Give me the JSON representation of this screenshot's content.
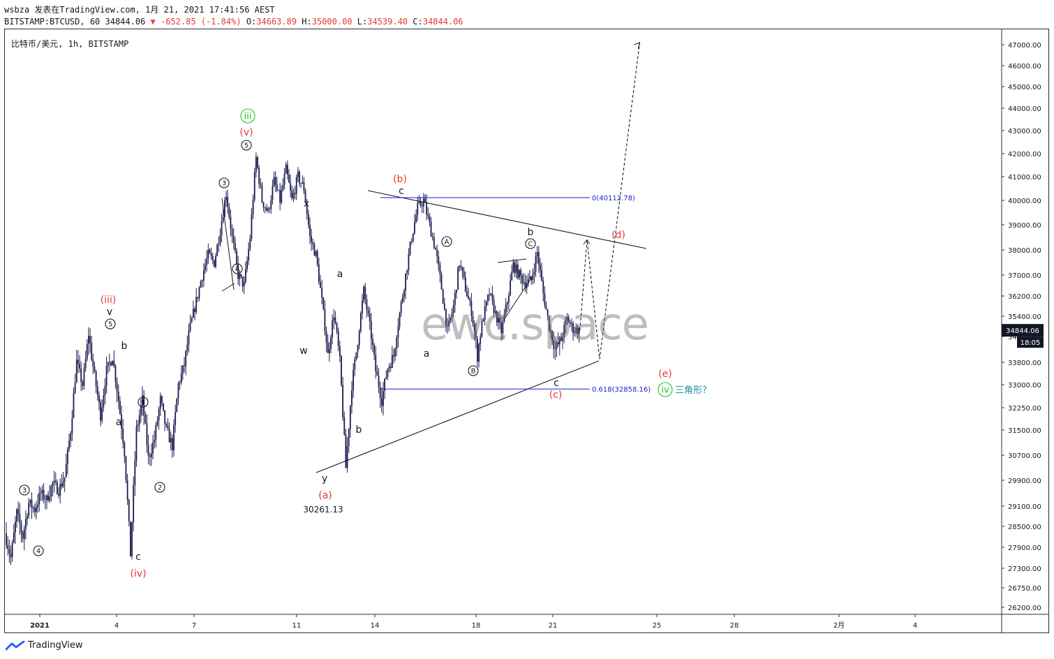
{
  "header": {
    "line1": "wsbza 发表在TradingView.com, 1月 21, 2021 17:41:56 AEST",
    "line2_symbol": "BITSTAMP:BTCUSD, 60 34844.06",
    "line2_change": "▼ -652.85 (-1.84%)",
    "o_label": "O:",
    "o_value": "34663.89",
    "h_label": "H:",
    "h_value": "35000.00",
    "l_label": "L:",
    "l_value": "34539.40",
    "c_label": "C:",
    "c_value": "34844.06"
  },
  "symbol_label": "比特币/美元, 1h, BITSTAMP",
  "watermark": "ewc.space",
  "brand": "TradingView",
  "price_tag": {
    "value": "34844.06",
    "countdown": "18:05"
  },
  "colors": {
    "candle": "#1a1a4e",
    "red": "#e53935",
    "green": "#22c322",
    "blue": "#1a23c8",
    "teal": "#1a8fa0"
  },
  "chart_data": {
    "type": "candlestick",
    "symbol": "BITSTAMP:BTCUSD",
    "interval": "1h",
    "y_ticks": [
      47000,
      46000,
      45000,
      44000,
      43000,
      42000,
      41000,
      40000,
      39000,
      38000,
      37000,
      36200,
      35400,
      34600,
      33800,
      33000,
      32250,
      31500,
      30700,
      29900,
      29100,
      28500,
      27900,
      27300,
      26750,
      26200
    ],
    "y_tick_labels": [
      "47000.00",
      "46000.00",
      "45000.00",
      "44000.00",
      "43000.00",
      "42000.00",
      "41000.00",
      "40000.00",
      "39000.00",
      "38000.00",
      "37000.00",
      "36200.00",
      "35400.00",
      "34600.00",
      "33800.00",
      "33000.00",
      "32250.00",
      "31500.00",
      "30700.00",
      "29900.00",
      "29100.00",
      "28500.00",
      "27900.00",
      "27300.00",
      "26750.00",
      "26200.00"
    ],
    "x_ticks": [
      "2021",
      "4",
      "7",
      "11",
      "14",
      "18",
      "21",
      "25",
      "28",
      "2月",
      "4"
    ],
    "price_path": [
      [
        0,
        28300
      ],
      [
        1,
        27600
      ],
      [
        2,
        28900
      ],
      [
        3,
        28200
      ],
      [
        4,
        29200
      ],
      [
        5,
        29000
      ],
      [
        6,
        29500
      ],
      [
        7,
        29300
      ],
      [
        8,
        29800
      ],
      [
        9,
        29600
      ],
      [
        10,
        30000
      ],
      [
        11,
        31500
      ],
      [
        12,
        33800
      ],
      [
        13,
        33000
      ],
      [
        14,
        34700
      ],
      [
        15,
        33300
      ],
      [
        16,
        32000
      ],
      [
        17,
        33500
      ],
      [
        18,
        34000
      ],
      [
        19,
        32500
      ],
      [
        20,
        30800
      ],
      [
        21,
        27700
      ],
      [
        22,
        31500
      ],
      [
        23,
        32500
      ],
      [
        24,
        30600
      ],
      [
        25,
        31200
      ],
      [
        26,
        32500
      ],
      [
        27,
        31500
      ],
      [
        28,
        31000
      ],
      [
        29,
        33000
      ],
      [
        30,
        33700
      ],
      [
        31,
        35000
      ],
      [
        32,
        36000
      ],
      [
        33,
        37000
      ],
      [
        34,
        37800
      ],
      [
        35,
        37500
      ],
      [
        36,
        38800
      ],
      [
        37,
        40300
      ],
      [
        38,
        38500
      ],
      [
        39,
        37000
      ],
      [
        40,
        36600
      ],
      [
        41,
        38500
      ],
      [
        42,
        41800
      ],
      [
        43,
        40000
      ],
      [
        44,
        39500
      ],
      [
        45,
        40800
      ],
      [
        46,
        40000
      ],
      [
        47,
        41300
      ],
      [
        48,
        40000
      ],
      [
        49,
        41000
      ],
      [
        50,
        40500
      ],
      [
        51,
        38500
      ],
      [
        52,
        37800
      ],
      [
        53,
        36000
      ],
      [
        54,
        34000
      ],
      [
        55,
        35500
      ],
      [
        56,
        33800
      ],
      [
        57,
        30300
      ],
      [
        58,
        33000
      ],
      [
        59,
        34500
      ],
      [
        60,
        36400
      ],
      [
        61,
        35000
      ],
      [
        62,
        33500
      ],
      [
        63,
        32500
      ],
      [
        64,
        33600
      ],
      [
        65,
        34000
      ],
      [
        66,
        35500
      ],
      [
        67,
        37000
      ],
      [
        68,
        38500
      ],
      [
        69,
        39700
      ],
      [
        70,
        40000
      ],
      [
        71,
        39000
      ],
      [
        72,
        38000
      ],
      [
        73,
        36500
      ],
      [
        74,
        34800
      ],
      [
        75,
        35800
      ],
      [
        76,
        37500
      ],
      [
        77,
        36500
      ],
      [
        78,
        35600
      ],
      [
        79,
        34000
      ],
      [
        80,
        35400
      ],
      [
        81,
        36300
      ],
      [
        82,
        35500
      ],
      [
        83,
        34800
      ],
      [
        84,
        36000
      ],
      [
        85,
        37400
      ],
      [
        86,
        37000
      ],
      [
        87,
        36700
      ],
      [
        88,
        36800
      ],
      [
        89,
        37900
      ],
      [
        90,
        36300
      ],
      [
        91,
        35000
      ],
      [
        92,
        34200
      ],
      [
        93,
        34500
      ],
      [
        94,
        35300
      ],
      [
        95,
        34900
      ],
      [
        96,
        34844
      ]
    ],
    "projection": [
      [
        96,
        34844
      ],
      [
        97.2,
        38400
      ],
      [
        99.3,
        33900
      ],
      [
        106,
        47100
      ]
    ],
    "annotations": {
      "black": [
        "v",
        "b",
        "a",
        "c",
        "x",
        "w",
        "y",
        "a",
        "b",
        "c",
        "a",
        "b",
        "a",
        "c",
        "b",
        "30261.13"
      ],
      "red": [
        "(iii)",
        "(iv)",
        "(v)",
        "(a)",
        "(b)",
        "(c)",
        "(d)",
        "(e)"
      ],
      "green": [
        "iii",
        "iv"
      ],
      "circled": [
        "3",
        "4",
        "5",
        "1",
        "2",
        "3",
        "4",
        "5",
        "A",
        "B",
        "C"
      ]
    },
    "fib_levels": [
      {
        "label": "0(40112.78)",
        "value": 40112.78
      },
      {
        "label": "0.618(32858.16)",
        "value": 32858.16
      }
    ],
    "triangle_label": "三角形?"
  }
}
